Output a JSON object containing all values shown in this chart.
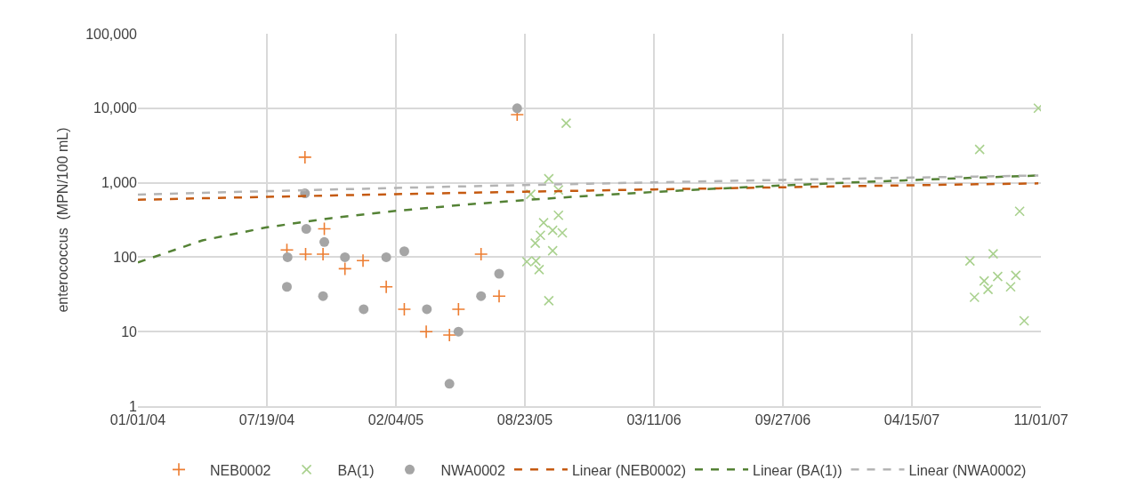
{
  "chart_data": {
    "type": "scatter",
    "ylabel": "enterococcus  (MPN/100 mL)",
    "log": "y",
    "grid": true,
    "legend": "bottom",
    "xlim": [
      "2004-01-01",
      "2007-11-01"
    ],
    "xticks": [
      {
        "value": "2004-01-01",
        "label": "01/01/04"
      },
      {
        "value": "2004-07-19",
        "label": "07/19/04"
      },
      {
        "value": "2005-02-04",
        "label": "02/04/05"
      },
      {
        "value": "2005-08-23",
        "label": "08/23/05"
      },
      {
        "value": "2006-03-11",
        "label": "03/11/06"
      },
      {
        "value": "2006-09-27",
        "label": "09/27/06"
      },
      {
        "value": "2007-04-15",
        "label": "04/15/07"
      },
      {
        "value": "2007-11-01",
        "label": "11/01/07"
      }
    ],
    "ylim": [
      1,
      100000
    ],
    "yticks": [
      1,
      10,
      {
        "value": 100,
        "label": "100"
      },
      {
        "value": 1000,
        "label": "1,000"
      },
      {
        "value": 10000,
        "label": "10,000"
      },
      {
        "value": 100000,
        "label": "100,000"
      }
    ],
    "series": [
      {
        "name": "NEB0002",
        "marker": "cross",
        "color": "#ed7d31",
        "x": [
          "2004-08-19",
          "2004-09-16",
          "2004-09-17",
          "2004-10-16",
          "2004-10-14",
          "2004-11-17",
          "2004-12-15",
          "2005-01-20",
          "2005-02-17",
          "2005-03-23",
          "2005-04-28",
          "2005-05-12",
          "2005-06-16",
          "2005-07-14",
          "2005-08-11"
        ],
        "values": [
          125,
          2200,
          110,
          240,
          110,
          70,
          90,
          40,
          20,
          10,
          9,
          20,
          110,
          30,
          8200
        ]
      },
      {
        "name": "BA(1)",
        "marker": "x",
        "color": "#a9d18e",
        "x": [
          "2005-08-26",
          "2005-09-01",
          "2005-09-08",
          "2005-09-09",
          "2005-09-14",
          "2005-09-16",
          "2005-09-21",
          "2005-09-29",
          "2005-09-29",
          "2005-10-05",
          "2005-10-05",
          "2005-10-14",
          "2005-10-14",
          "2005-10-20",
          "2005-10-26",
          "2007-07-14",
          "2007-07-21",
          "2007-07-29",
          "2007-08-05",
          "2007-08-11",
          "2007-08-19",
          "2007-08-26",
          "2007-09-15",
          "2007-09-23",
          "2007-09-29",
          "2007-10-06",
          "2007-10-28"
        ],
        "values": [
          87,
          700,
          154,
          89,
          68,
          197,
          290,
          1130,
          26,
          230,
          122,
          800,
          365,
          212,
          6300,
          89,
          29,
          2800,
          48,
          37,
          111,
          55,
          40,
          57,
          414,
          14,
          10000
        ]
      },
      {
        "name": "NWA0002",
        "marker": "circle",
        "color": "#a5a5a5",
        "x": [
          "2004-08-20",
          "2004-08-19",
          "2004-09-16",
          "2004-09-18",
          "2004-10-16",
          "2004-10-14",
          "2004-11-17",
          "2004-12-16",
          "2005-01-20",
          "2005-02-17",
          "2005-03-24",
          "2005-05-12",
          "2005-04-28",
          "2005-06-16",
          "2005-07-14",
          "2005-08-11"
        ],
        "values": [
          100,
          40,
          720,
          240,
          160,
          30,
          100,
          20,
          100,
          120,
          20,
          10,
          2,
          30,
          60,
          10000
        ]
      },
      {
        "name": "Linear (NEB0002)",
        "type": "line",
        "marker": "none",
        "line_style": "dashed",
        "color": "#c55a11",
        "x": [
          "2004-01-01",
          "2004-04-10",
          "2004-07-19",
          "2004-10-27",
          "2005-02-04",
          "2005-05-15",
          "2005-08-23",
          "2005-12-01",
          "2006-03-11",
          "2006-06-19",
          "2006-09-27",
          "2007-01-05",
          "2007-04-15",
          "2007-07-24",
          "2007-10-28"
        ],
        "values": [
          590,
          618,
          646,
          674,
          702,
          730,
          757,
          785,
          813,
          841,
          869,
          897,
          925,
          953,
          980
        ]
      },
      {
        "name": "Linear (BA(1))",
        "type": "line",
        "marker": "none",
        "line_style": "dashed",
        "color": "#548235",
        "x": [
          "2004-01-01",
          "2004-04-10",
          "2004-07-19",
          "2004-10-27",
          "2005-02-04",
          "2005-05-15",
          "2005-08-23",
          "2005-12-01",
          "2006-03-11",
          "2006-06-19",
          "2006-09-27",
          "2007-01-05",
          "2007-04-15",
          "2007-07-24",
          "2007-10-28"
        ],
        "values": [
          85,
          168,
          252,
          335,
          418,
          502,
          585,
          668,
          752,
          835,
          919,
          1002,
          1086,
          1169,
          1250
        ]
      },
      {
        "name": "Linear (NWA0002)",
        "type": "line",
        "marker": "none",
        "line_style": "dashed",
        "color": "#b4b4b4",
        "x": [
          "2004-01-01",
          "2004-04-10",
          "2004-07-19",
          "2004-10-27",
          "2005-02-04",
          "2005-05-15",
          "2005-08-23",
          "2005-12-01",
          "2006-03-11",
          "2006-06-19",
          "2006-09-27",
          "2007-01-05",
          "2007-04-15",
          "2007-07-24",
          "2007-10-28"
        ],
        "values": [
          690,
          730,
          770,
          810,
          851,
          891,
          931,
          971,
          1011,
          1051,
          1091,
          1131,
          1171,
          1211,
          1250
        ]
      }
    ]
  }
}
